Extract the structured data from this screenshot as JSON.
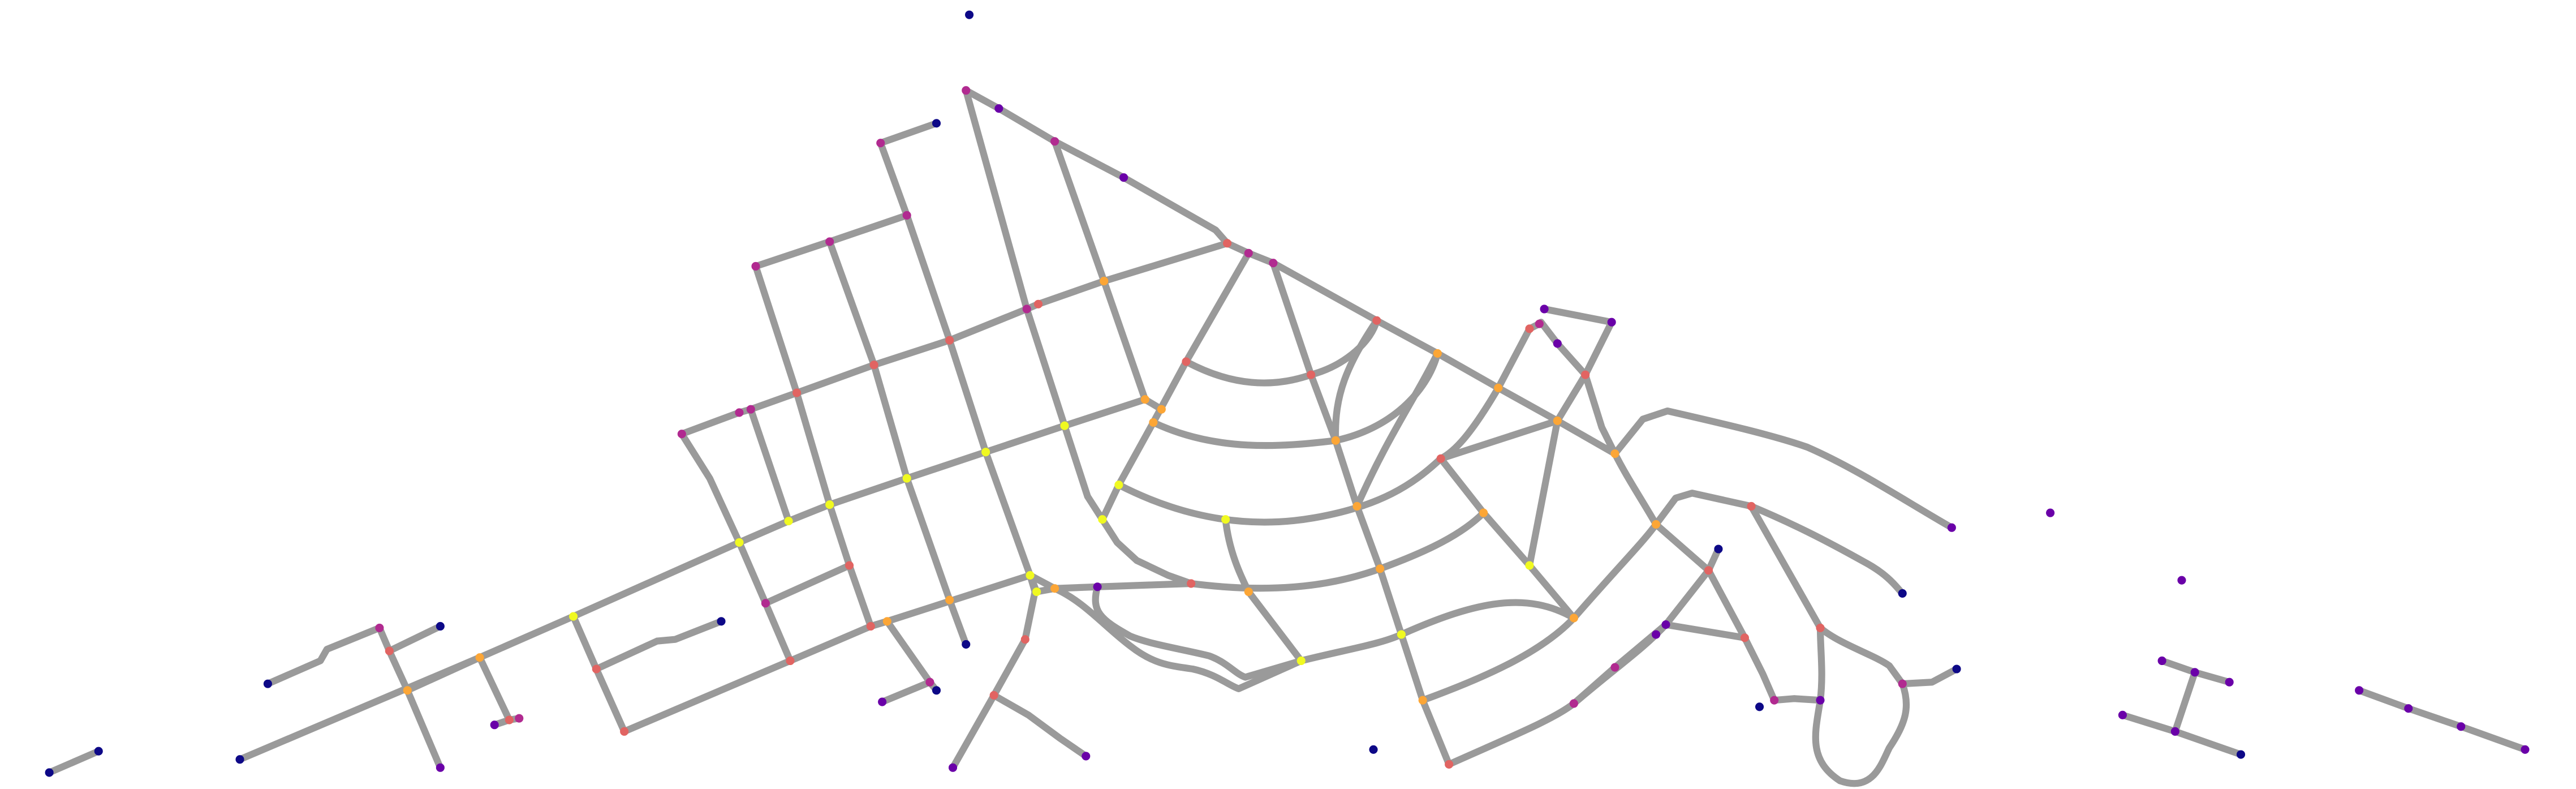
{
  "map": {
    "type": "street-network-graph",
    "background_color": "#ffffff",
    "edge_color": "#9a9a9a",
    "node_colormap": [
      "#0d0887",
      "#6a00a8",
      "#b12a90",
      "#e16462",
      "#fca636",
      "#f0f921"
    ],
    "legend": "none",
    "title": "",
    "labels": []
  }
}
